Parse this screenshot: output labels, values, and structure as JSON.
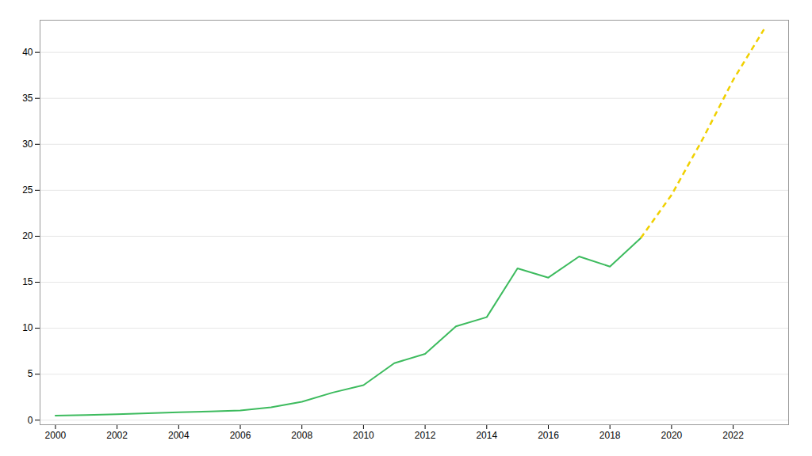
{
  "chart_data": {
    "type": "line",
    "x": [
      2000,
      2001,
      2002,
      2003,
      2004,
      2005,
      2006,
      2007,
      2008,
      2009,
      2010,
      2011,
      2012,
      2013,
      2014,
      2015,
      2016,
      2017,
      2018,
      2019,
      2020,
      2021,
      2022,
      2023
    ],
    "series": [
      {
        "color": "#3dbb5e",
        "line_style": "solid",
        "values": [
          0.5,
          0.55,
          0.65,
          0.75,
          0.85,
          0.95,
          1.05,
          1.4,
          2.0,
          3.0,
          3.8,
          6.2,
          7.2,
          10.2,
          11.2,
          16.5,
          15.5,
          17.8,
          16.7,
          19.8,
          null,
          null,
          null,
          null
        ]
      },
      {
        "color": "#f0d000",
        "line_style": "dashed",
        "values": [
          null,
          null,
          null,
          null,
          null,
          null,
          null,
          null,
          null,
          null,
          null,
          null,
          null,
          null,
          null,
          null,
          null,
          null,
          null,
          19.8,
          24.5,
          30.5,
          37.0,
          42.5
        ]
      }
    ],
    "xlim": [
      1999.5,
      2023.8
    ],
    "ylim": [
      -0.5,
      43.5
    ],
    "xticks": [
      2000,
      2002,
      2004,
      2006,
      2008,
      2010,
      2012,
      2014,
      2016,
      2018,
      2020,
      2022
    ],
    "yticks": [
      0,
      5,
      10,
      15,
      20,
      25,
      30,
      35,
      40
    ],
    "grid": true
  }
}
